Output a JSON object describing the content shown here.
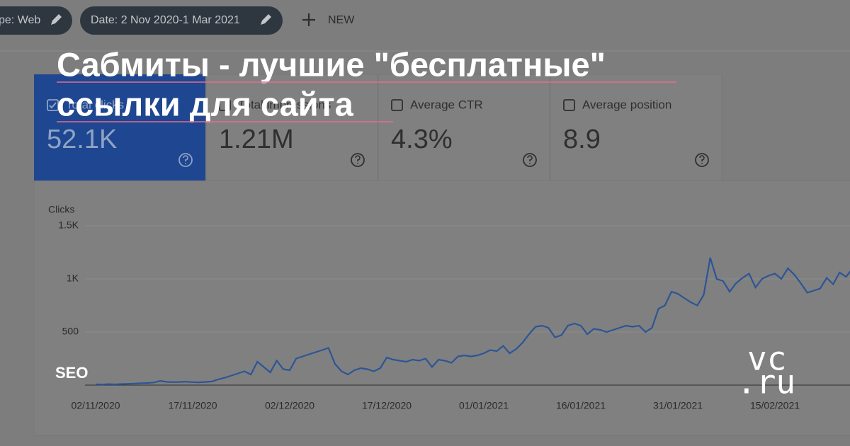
{
  "toolbar": {
    "chips": [
      "pe: Web",
      "Date: 2 Nov 2020-1 Mar 2021"
    ],
    "new_button": "NEW"
  },
  "cards": [
    {
      "label": "Total clicks",
      "value": "52.1K"
    },
    {
      "label": "Total impressions",
      "value": "1.21M"
    },
    {
      "label": "Average CTR",
      "value": "4.3%"
    },
    {
      "label": "Average position",
      "value": "8.9"
    }
  ],
  "chart_data": {
    "type": "line",
    "y_label": "Clicks",
    "categories": [
      "02/11/2020",
      null,
      null,
      null,
      null,
      null,
      null,
      null,
      null,
      null,
      null,
      null,
      null,
      null,
      null,
      "17/11/2020",
      null,
      null,
      null,
      null,
      null,
      null,
      null,
      null,
      null,
      null,
      null,
      null,
      null,
      null,
      "02/12/2020",
      null,
      null,
      null,
      null,
      null,
      null,
      null,
      null,
      null,
      null,
      null,
      null,
      null,
      null,
      "17/12/2020",
      null,
      null,
      null,
      null,
      null,
      null,
      null,
      null,
      null,
      null,
      null,
      null,
      null,
      null,
      "01/01/2021",
      null,
      null,
      null,
      null,
      null,
      null,
      null,
      null,
      null,
      null,
      null,
      null,
      null,
      null,
      "16/01/2021",
      null,
      null,
      null,
      null,
      null,
      null,
      null,
      null,
      null,
      null,
      null,
      null,
      null,
      null,
      "31/01/2021",
      null,
      null,
      null,
      null,
      null,
      null,
      null,
      null,
      null,
      null,
      null,
      null,
      null,
      null,
      "15/02/2021",
      null,
      null,
      null,
      null,
      null,
      null,
      null,
      null,
      null,
      null,
      null,
      null
    ],
    "series": [
      {
        "name": "Clicks",
        "color": "#2c5596",
        "values": [
          8,
          6,
          9,
          7,
          10,
          12,
          15,
          18,
          20,
          25,
          40,
          30,
          28,
          30,
          32,
          28,
          26,
          30,
          35,
          55,
          70,
          90,
          110,
          130,
          100,
          220,
          170,
          120,
          230,
          150,
          140,
          250,
          270,
          290,
          310,
          330,
          350,
          200,
          130,
          100,
          140,
          160,
          150,
          130,
          160,
          260,
          240,
          230,
          220,
          240,
          230,
          250,
          170,
          240,
          230,
          210,
          270,
          280,
          270,
          280,
          300,
          330,
          320,
          370,
          300,
          340,
          400,
          480,
          550,
          560,
          540,
          450,
          470,
          560,
          580,
          560,
          480,
          530,
          520,
          500,
          520,
          540,
          560,
          550,
          560,
          500,
          540,
          720,
          750,
          880,
          860,
          820,
          780,
          750,
          850,
          1200,
          1000,
          980,
          880,
          960,
          1010,
          1050,
          920,
          1000,
          1030,
          1050,
          1000,
          1100,
          1040,
          960,
          870,
          890,
          910,
          1010,
          950,
          1060,
          1020,
          1100
        ]
      }
    ],
    "ylim": [
      0,
      1500
    ],
    "yticks": [
      500,
      {
        "value": 1000,
        "label": "1K"
      },
      {
        "value": 1500,
        "label": "1.5K"
      }
    ],
    "grid": true
  },
  "overlay": {
    "title_lines": [
      "Сабмиты - лучшие \"бесплатные\"",
      "ссылки для сайта"
    ],
    "tag": "SEO",
    "logo_lines": [
      "vc",
      ".ru"
    ]
  }
}
